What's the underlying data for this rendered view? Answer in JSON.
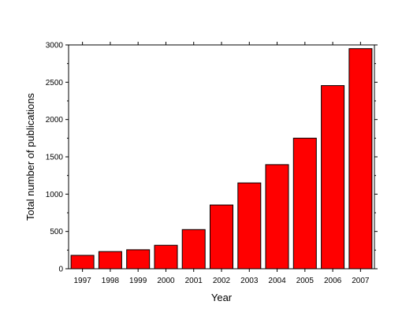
{
  "chart_data": {
    "type": "bar",
    "title": "",
    "xlabel": "Year",
    "ylabel": "Total number of publications",
    "categories": [
      "1997",
      "1998",
      "1999",
      "2000",
      "2001",
      "2002",
      "2003",
      "2004",
      "2005",
      "2006",
      "2007"
    ],
    "values": [
      180,
      230,
      255,
      315,
      525,
      855,
      1150,
      1395,
      1750,
      2455,
      2950
    ],
    "ylim": [
      0,
      3000
    ],
    "yticks": [
      "0",
      "500",
      "1000",
      "1500",
      "2000",
      "2500",
      "3000"
    ],
    "ytick_values": [
      0,
      500,
      1000,
      1500,
      2000,
      2500,
      3000
    ],
    "grid": false,
    "legend": "none",
    "colors": {
      "bar_fill": "#ff0000",
      "bar_stroke": "#000000",
      "axis": "#000000",
      "background": "#ffffff"
    }
  }
}
